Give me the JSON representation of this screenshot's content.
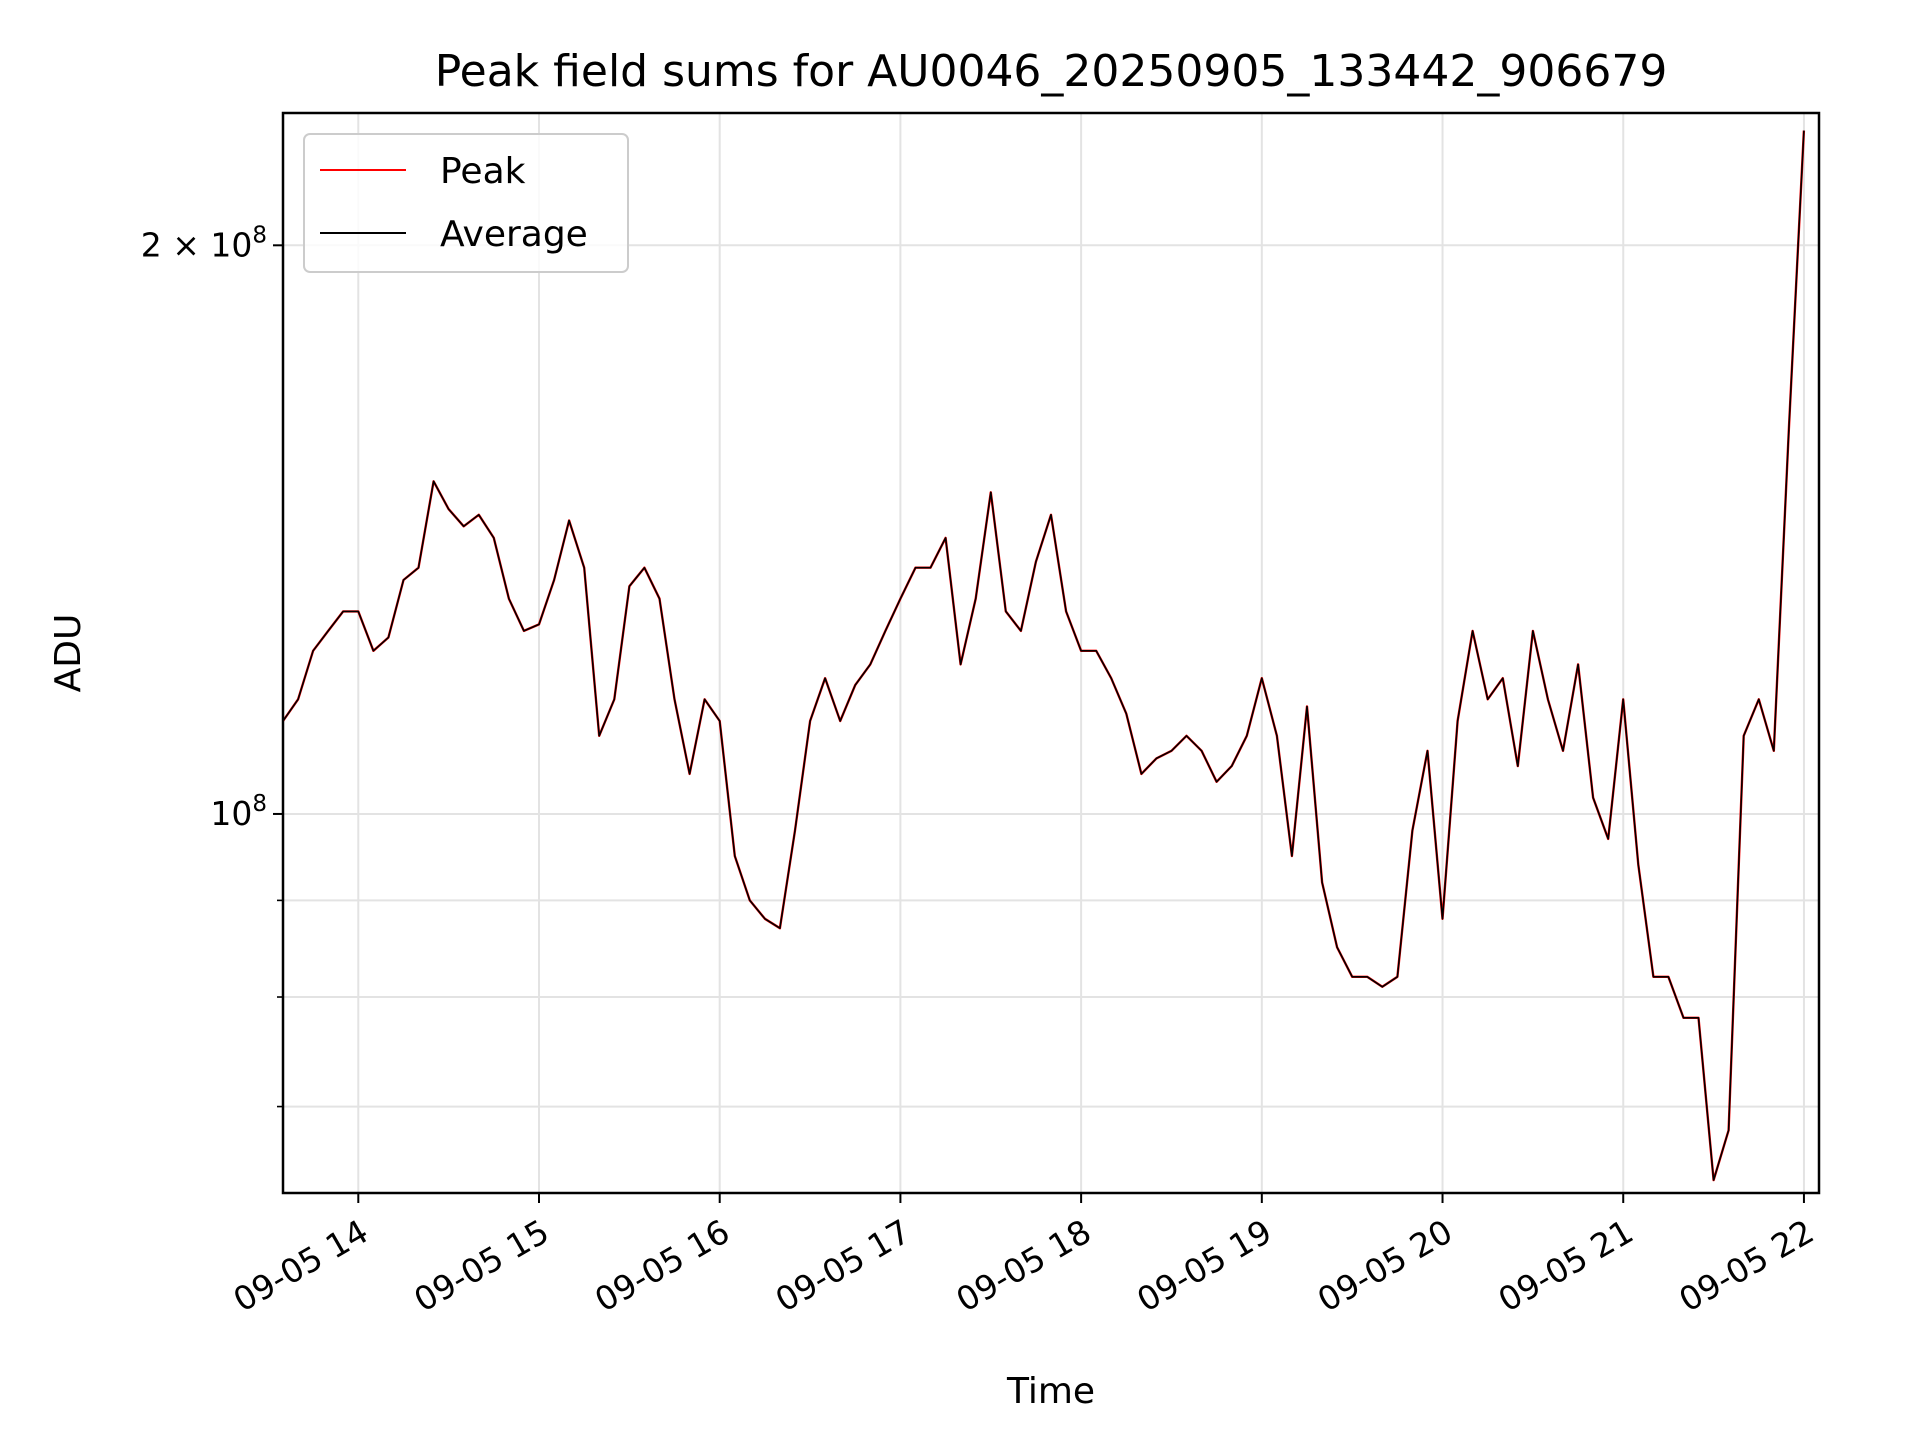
{
  "chart_data": {
    "type": "line",
    "title": "Peak field sums for AU0046_20250905_133442_906679",
    "xlabel": "Time",
    "ylabel": "ADU",
    "x_scale": "time",
    "y_scale": "log",
    "xlim": [
      "09-05 13:35",
      "09-05 22:05"
    ],
    "ylim": [
      63000000,
      235000000
    ],
    "grid": true,
    "legend": {
      "placement": "top-left",
      "entries": [
        "Peak",
        "Average"
      ]
    },
    "x_ticks": [
      "09-05 14",
      "09-05 15",
      "09-05 16",
      "09-05 17",
      "09-05 18",
      "09-05 19",
      "09-05 20",
      "09-05 21",
      "09-05 22"
    ],
    "y_tick_labels": [
      {
        "value": 100000000,
        "mantissa": "",
        "base": "10",
        "exp": "8"
      },
      {
        "value": 200000000,
        "mantissa": "2 × ",
        "base": "10",
        "exp": "8"
      }
    ],
    "y_minor_ticks": [
      60000000,
      70000000,
      80000000,
      90000000
    ],
    "series": [
      {
        "name": "Peak",
        "color": "#ff0000",
        "x": [
          "09-05 13:35",
          "09-05 13:40",
          "09-05 13:45",
          "09-05 13:50",
          "09-05 13:55",
          "09-05 14:00",
          "09-05 14:05",
          "09-05 14:10",
          "09-05 14:15",
          "09-05 14:20",
          "09-05 14:25",
          "09-05 14:30",
          "09-05 14:35",
          "09-05 14:40",
          "09-05 14:45",
          "09-05 14:50",
          "09-05 14:55",
          "09-05 15:00",
          "09-05 15:05",
          "09-05 15:10",
          "09-05 15:15",
          "09-05 15:20",
          "09-05 15:25",
          "09-05 15:30",
          "09-05 15:35",
          "09-05 15:40",
          "09-05 15:45",
          "09-05 15:50",
          "09-05 15:55",
          "09-05 16:00",
          "09-05 16:05",
          "09-05 16:10",
          "09-05 16:15",
          "09-05 16:20",
          "09-05 16:25",
          "09-05 16:30",
          "09-05 16:35",
          "09-05 16:40",
          "09-05 16:45",
          "09-05 16:50",
          "09-05 16:55",
          "09-05 17:00",
          "09-05 17:05",
          "09-05 17:10",
          "09-05 17:15",
          "09-05 17:20",
          "09-05 17:25",
          "09-05 17:30",
          "09-05 17:35",
          "09-05 17:40",
          "09-05 17:45",
          "09-05 17:50",
          "09-05 17:55",
          "09-05 18:00",
          "09-05 18:05",
          "09-05 18:10",
          "09-05 18:15",
          "09-05 18:20",
          "09-05 18:25",
          "09-05 18:30",
          "09-05 18:35",
          "09-05 18:40",
          "09-05 18:45",
          "09-05 18:50",
          "09-05 18:55",
          "09-05 19:00",
          "09-05 19:05",
          "09-05 19:10",
          "09-05 19:15",
          "09-05 19:20",
          "09-05 19:25",
          "09-05 19:30",
          "09-05 19:35",
          "09-05 19:40",
          "09-05 19:45",
          "09-05 19:50",
          "09-05 19:55",
          "09-05 20:00",
          "09-05 20:05",
          "09-05 20:10",
          "09-05 20:15",
          "09-05 20:20",
          "09-05 20:25",
          "09-05 20:30",
          "09-05 20:35",
          "09-05 20:40",
          "09-05 20:45",
          "09-05 20:50",
          "09-05 20:55",
          "09-05 21:00",
          "09-05 21:05",
          "09-05 21:10",
          "09-05 21:15",
          "09-05 21:20",
          "09-05 21:25",
          "09-05 21:30",
          "09-05 21:35",
          "09-05 21:40",
          "09-05 21:45",
          "09-05 21:50",
          "09-05 21:55",
          "09-05 22:00"
        ],
        "values": [
          112000000.0,
          115000000.0,
          122000000.0,
          125000000.0,
          128000000.0,
          128000000.0,
          122000000.0,
          124000000.0,
          133000000.0,
          135000000.0,
          150000000.0,
          145000000.0,
          142000000.0,
          144000000.0,
          140000000.0,
          130000000.0,
          125000000.0,
          126000000.0,
          133000000.0,
          143000000.0,
          135000000.0,
          110000000.0,
          115000000.0,
          132000000.0,
          135000000.0,
          130000000.0,
          115000000.0,
          105000000.0,
          115000000.0,
          112000000.0,
          95000000.0,
          90000000.0,
          88000000.0,
          87000000.0,
          98000000.0,
          112000000.0,
          118000000.0,
          112000000.0,
          117000000.0,
          120000000.0,
          125000000.0,
          130000000.0,
          135000000.0,
          135000000.0,
          140000000.0,
          120000000.0,
          130000000.0,
          148000000.0,
          128000000.0,
          125000000.0,
          136000000.0,
          144000000.0,
          128000000.0,
          122000000.0,
          122000000.0,
          118000000.0,
          113000000.0,
          105000000.0,
          107000000.0,
          108000000.0,
          110000000.0,
          108000000.0,
          104000000.0,
          106000000.0,
          110000000.0,
          118000000.0,
          110000000.0,
          95000000.0,
          114000000.0,
          92000000.0,
          85000000.0,
          82000000.0,
          82000000.0,
          81000000.0,
          82000000.0,
          98000000.0,
          108000000.0,
          88000000.0,
          112000000.0,
          125000000.0,
          115000000.0,
          118000000.0,
          106000000.0,
          125000000.0,
          115000000.0,
          108000000.0,
          120000000.0,
          102000000.0,
          97000000.0,
          115000000.0,
          94000000.0,
          82000000.0,
          82000000.0,
          78000000.0,
          78000000.0,
          64000000.0,
          68000000.0,
          110000000.0,
          115000000.0,
          108000000.0,
          160000000.0,
          230000000.0
        ]
      },
      {
        "name": "Average",
        "color": "#000000",
        "x": [
          "09-05 13:35",
          "09-05 13:40",
          "09-05 13:45",
          "09-05 13:50",
          "09-05 13:55",
          "09-05 14:00",
          "09-05 14:05",
          "09-05 14:10",
          "09-05 14:15",
          "09-05 14:20",
          "09-05 14:25",
          "09-05 14:30",
          "09-05 14:35",
          "09-05 14:40",
          "09-05 14:45",
          "09-05 14:50",
          "09-05 14:55",
          "09-05 15:00",
          "09-05 15:05",
          "09-05 15:10",
          "09-05 15:15",
          "09-05 15:20",
          "09-05 15:25",
          "09-05 15:30",
          "09-05 15:35",
          "09-05 15:40",
          "09-05 15:45",
          "09-05 15:50",
          "09-05 15:55",
          "09-05 16:00",
          "09-05 16:05",
          "09-05 16:10",
          "09-05 16:15",
          "09-05 16:20",
          "09-05 16:25",
          "09-05 16:30",
          "09-05 16:35",
          "09-05 16:40",
          "09-05 16:45",
          "09-05 16:50",
          "09-05 16:55",
          "09-05 17:00",
          "09-05 17:05",
          "09-05 17:10",
          "09-05 17:15",
          "09-05 17:20",
          "09-05 17:25",
          "09-05 17:30",
          "09-05 17:35",
          "09-05 17:40",
          "09-05 17:45",
          "09-05 17:50",
          "09-05 17:55",
          "09-05 18:00",
          "09-05 18:05",
          "09-05 18:10",
          "09-05 18:15",
          "09-05 18:20",
          "09-05 18:25",
          "09-05 18:30",
          "09-05 18:35",
          "09-05 18:40",
          "09-05 18:45",
          "09-05 18:50",
          "09-05 18:55",
          "09-05 19:00",
          "09-05 19:05",
          "09-05 19:10",
          "09-05 19:15",
          "09-05 19:20",
          "09-05 19:25",
          "09-05 19:30",
          "09-05 19:35",
          "09-05 19:40",
          "09-05 19:45",
          "09-05 19:50",
          "09-05 19:55",
          "09-05 20:00",
          "09-05 20:05",
          "09-05 20:10",
          "09-05 20:15",
          "09-05 20:20",
          "09-05 20:25",
          "09-05 20:30",
          "09-05 20:35",
          "09-05 20:40",
          "09-05 20:45",
          "09-05 20:50",
          "09-05 20:55",
          "09-05 21:00",
          "09-05 21:05",
          "09-05 21:10",
          "09-05 21:15",
          "09-05 21:20",
          "09-05 21:25",
          "09-05 21:30",
          "09-05 21:35",
          "09-05 21:40",
          "09-05 21:45",
          "09-05 21:50",
          "09-05 21:55",
          "09-05 22:00"
        ],
        "values": [
          112000000.0,
          115000000.0,
          122000000.0,
          125000000.0,
          128000000.0,
          128000000.0,
          122000000.0,
          124000000.0,
          133000000.0,
          135000000.0,
          150000000.0,
          145000000.0,
          142000000.0,
          144000000.0,
          140000000.0,
          130000000.0,
          125000000.0,
          126000000.0,
          133000000.0,
          143000000.0,
          135000000.0,
          110000000.0,
          115000000.0,
          132000000.0,
          135000000.0,
          130000000.0,
          115000000.0,
          105000000.0,
          115000000.0,
          112000000.0,
          95000000.0,
          90000000.0,
          88000000.0,
          87000000.0,
          98000000.0,
          112000000.0,
          118000000.0,
          112000000.0,
          117000000.0,
          120000000.0,
          125000000.0,
          130000000.0,
          135000000.0,
          135000000.0,
          140000000.0,
          120000000.0,
          130000000.0,
          148000000.0,
          128000000.0,
          125000000.0,
          136000000.0,
          144000000.0,
          128000000.0,
          122000000.0,
          122000000.0,
          118000000.0,
          113000000.0,
          105000000.0,
          107000000.0,
          108000000.0,
          110000000.0,
          108000000.0,
          104000000.0,
          106000000.0,
          110000000.0,
          118000000.0,
          110000000.0,
          95000000.0,
          114000000.0,
          92000000.0,
          85000000.0,
          82000000.0,
          82000000.0,
          81000000.0,
          82000000.0,
          98000000.0,
          108000000.0,
          88000000.0,
          112000000.0,
          125000000.0,
          115000000.0,
          118000000.0,
          106000000.0,
          125000000.0,
          115000000.0,
          108000000.0,
          120000000.0,
          102000000.0,
          97000000.0,
          115000000.0,
          94000000.0,
          82000000.0,
          82000000.0,
          78000000.0,
          78000000.0,
          64000000.0,
          68000000.0,
          110000000.0,
          115000000.0,
          108000000.0,
          160000000.0,
          230000000.0
        ]
      }
    ]
  }
}
